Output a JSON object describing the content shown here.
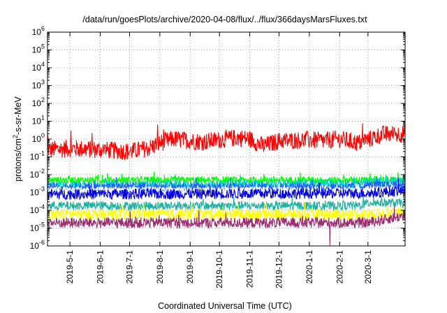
{
  "chart_data": {
    "type": "line",
    "title": "/data/run/goesPlots/archive/2020-04-08/flux/../flux/366daysMarsFluxes.txt",
    "xlabel": "Coordinated Universal Time (UTC)",
    "ylabel": "protons/cm2-s-sr-MeV",
    "ylabel_base": "protons/cm",
    "ylabel_sup": "2",
    "ylabel_rest": "-s-sr-MeV",
    "y_scale": "log",
    "ylim": [
      1e-06,
      1000000.0
    ],
    "xlim": [
      "2019-04-08",
      "2020-04-08"
    ],
    "grid": true,
    "legend": "none",
    "y_ticks": [
      {
        "exp": -6,
        "base": "10",
        "sup": "-6"
      },
      {
        "exp": -5,
        "base": "10",
        "sup": "-5"
      },
      {
        "exp": -4,
        "base": "10",
        "sup": "-4"
      },
      {
        "exp": -3,
        "base": "10",
        "sup": "-3"
      },
      {
        "exp": -2,
        "base": "10",
        "sup": "-2"
      },
      {
        "exp": -1,
        "base": "10",
        "sup": "-1"
      },
      {
        "exp": 0,
        "base": "10",
        "sup": "0"
      },
      {
        "exp": 1,
        "base": "10",
        "sup": "1"
      },
      {
        "exp": 2,
        "base": "10",
        "sup": "2"
      },
      {
        "exp": 3,
        "base": "10",
        "sup": "3"
      },
      {
        "exp": 4,
        "base": "10",
        "sup": "4"
      },
      {
        "exp": 5,
        "base": "10",
        "sup": "5"
      },
      {
        "exp": 6,
        "base": "10",
        "sup": "6"
      }
    ],
    "x_ticks": [
      "2019-5-1",
      "2019-6-1",
      "2019-7-1",
      "2019-8-1",
      "2019-9-1",
      "2019-10-1",
      "2019-11-1",
      "2019-12-1",
      "2020-1-1",
      "2020-2-1",
      "2020-3-1"
    ],
    "x_tick_dates": [
      "2019-05-01",
      "2019-06-01",
      "2019-07-01",
      "2019-08-01",
      "2019-09-01",
      "2019-10-01",
      "2019-11-01",
      "2019-12-01",
      "2020-01-01",
      "2020-02-01",
      "2020-03-01"
    ],
    "series": [
      {
        "color": "#ff0000",
        "x": [
          "2019-04-08",
          "2019-05-01",
          "2019-06-01",
          "2019-07-01",
          "2019-07-20",
          "2019-08-01",
          "2019-08-15",
          "2019-09-01",
          "2019-09-15",
          "2019-10-01",
          "2019-10-20",
          "2019-11-01",
          "2019-11-15",
          "2019-12-01",
          "2020-01-01",
          "2020-01-15",
          "2020-02-01",
          "2020-02-20",
          "2020-03-01",
          "2020-03-15",
          "2020-04-08"
        ],
        "y": [
          0.25,
          0.3,
          0.25,
          0.2,
          0.3,
          0.6,
          1.0,
          0.8,
          0.7,
          0.9,
          1.2,
          1.0,
          0.4,
          0.8,
          0.9,
          0.8,
          1.0,
          0.6,
          0.9,
          1.8,
          2.0
        ],
        "noise": 0.5
      },
      {
        "color": "#00ff00",
        "x": [
          "2019-04-08",
          "2020-04-08"
        ],
        "y": [
          0.005,
          0.005
        ],
        "noise": 0.2
      },
      {
        "color": "#00c8c8",
        "x": [
          "2019-04-08",
          "2020-02-15",
          "2020-03-01",
          "2020-04-08"
        ],
        "y": [
          0.0025,
          0.003,
          0.004,
          0.004
        ],
        "noise": 0.25
      },
      {
        "color": "#2060ff",
        "x": [
          "2019-04-08",
          "2020-02-15",
          "2020-03-01",
          "2020-04-08"
        ],
        "y": [
          0.002,
          0.002,
          0.0025,
          0.0025
        ],
        "noise": 0.25
      },
      {
        "color": "#ffffff",
        "x": [
          "2019-04-08",
          "2020-04-08"
        ],
        "y": [
          0.0015,
          0.0015
        ],
        "noise": 0.15
      },
      {
        "color": "#0000e0",
        "x": [
          "2019-04-08",
          "2020-03-01",
          "2020-04-08"
        ],
        "y": [
          0.0008,
          0.0009,
          0.0013
        ],
        "noise": 0.3
      },
      {
        "color": "#20b0a0",
        "x": [
          "2019-04-08",
          "2020-02-20",
          "2020-03-05",
          "2020-04-08"
        ],
        "y": [
          0.00018,
          0.00018,
          0.00028,
          0.00025
        ],
        "noise": 0.25
      },
      {
        "color": "#ffff00",
        "x": [
          "2019-04-08",
          "2020-03-01",
          "2020-04-08"
        ],
        "y": [
          6e-05,
          6e-05,
          8e-05
        ],
        "noise": 0.3
      },
      {
        "color": "#9b2d6f",
        "x": [
          "2019-04-08",
          "2020-03-01",
          "2020-04-08"
        ],
        "y": [
          2e-05,
          2e-05,
          5e-05
        ],
        "noise": 0.3,
        "dropout": {
          "x": "2020-01-22",
          "y": 1e-06
        }
      }
    ]
  }
}
